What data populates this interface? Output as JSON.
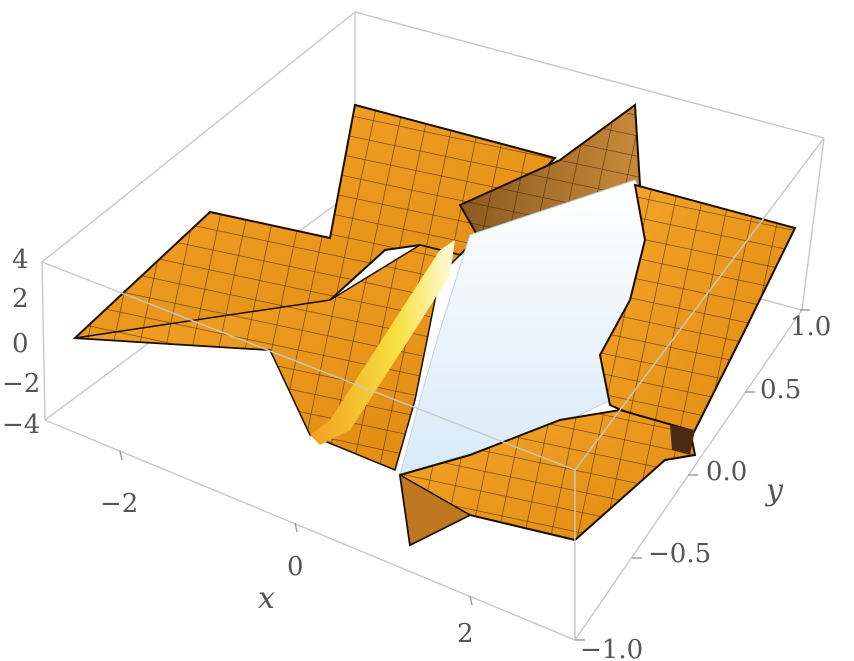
{
  "chart_data": {
    "type": "surface3d",
    "title": "",
    "xlabel": "x",
    "ylabel": "y",
    "zlabel": "",
    "xlim": [
      -3,
      3
    ],
    "ylim": [
      -1,
      1
    ],
    "zlim": [
      -4,
      4
    ],
    "x_ticks": [
      "−2",
      "0",
      "2"
    ],
    "y_ticks": [
      "−1.0",
      "−0.5",
      "0.0",
      "0.5",
      "1.0"
    ],
    "z_ticks": [
      "4",
      "2",
      "0",
      "−2",
      "−4"
    ],
    "surface_color": "#f0a020",
    "mesh_color": "#3a2000",
    "box_color": "#c8c8c8"
  }
}
